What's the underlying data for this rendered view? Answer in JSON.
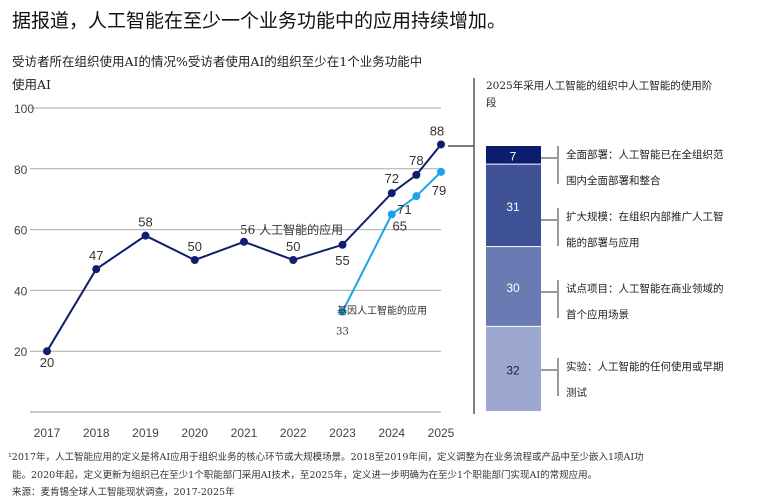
{
  "title": "据报道，人工智能在至少一个业务功能中的应用持续增加。",
  "subtitle": "受访者所在组织使用AI的情况%受访者使用AI的组织至少在1个业务功能中使用AI",
  "right_title": "2025年采用人工智能的组织中人工智能的使用阶段",
  "footnote1": "¹2017年，人工智能应用的定义是将AI应用于组织业务的核心环节或大规模场景。2018至2019年间，定义调整为在业务流程或产品中至少嵌入1项AI功",
  "footnote2": "能。2020年起，定义更新为组织已在至少1个职能部门采用AI技术，至2025年，定义进一步明确为在至少1个职能部门实现AI的常规应用。",
  "source": "来源：麦肯锡全球人工智能现状调查，2017-2025年",
  "chart_data": [
    {
      "type": "line",
      "x": [
        2017,
        2018,
        2019,
        2020,
        2021,
        2022,
        2023,
        2024,
        2025
      ],
      "ylim": [
        0,
        100
      ],
      "yticks": [
        20,
        40,
        60,
        80,
        100
      ],
      "grid": true,
      "series": [
        {
          "name": "人工智能的应用",
          "annotation": "56 人工智能的应用",
          "x": [
            2017,
            2018,
            2019,
            2020,
            2021,
            2022,
            2023,
            2024,
            2024.5,
            2025
          ],
          "values": [
            20,
            47,
            58,
            50,
            56,
            50,
            55,
            72,
            78,
            88
          ],
          "color": "#0f1f6e"
        },
        {
          "name": "基因人工智能的应用",
          "x": [
            2023,
            2024,
            2024.5,
            2025
          ],
          "values": [
            33,
            65,
            71,
            79
          ],
          "color": "#1aa3e8"
        }
      ]
    },
    {
      "type": "bar",
      "stacked": true,
      "categories": [
        "2025"
      ],
      "segments": [
        {
          "value": 7,
          "label": "全面部署：人工智能已在全组织范围内全面部署和整合",
          "color": "#0c1d6e"
        },
        {
          "value": 31,
          "label": "扩大规模：在组织内部推广人工智能的部署与应用",
          "color": "#3f5296"
        },
        {
          "value": 30,
          "label": "试点项目：人工智能在商业领域的首个应用场景",
          "color": "#6a7bb4"
        },
        {
          "value": 32,
          "label": "实验：人工智能的任何使用或早期测试",
          "color": "#9ca8d0"
        }
      ]
    }
  ]
}
